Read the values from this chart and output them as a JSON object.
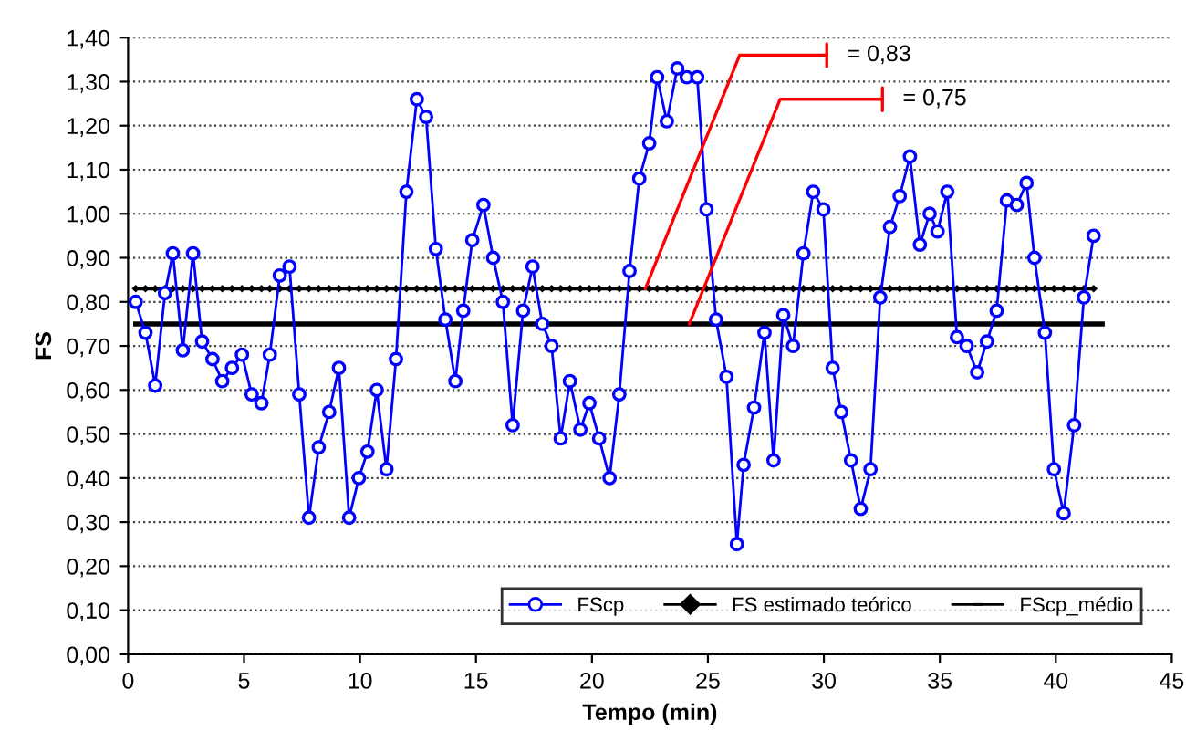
{
  "chart_data": {
    "type": "line",
    "xlabel": "Tempo (min)",
    "ylabel": "FS",
    "xlim": [
      0,
      45
    ],
    "xticks": [
      0,
      5,
      10,
      15,
      20,
      25,
      30,
      35,
      40,
      45
    ],
    "ylim": [
      0,
      1.4
    ],
    "yticks": [
      {
        "value": 0,
        "label": "0,00"
      },
      {
        "value": 0.1,
        "label": "0,10"
      },
      {
        "value": 0.2,
        "label": "0,20"
      },
      {
        "value": 0.3,
        "label": "0,30"
      },
      {
        "value": 0.4,
        "label": "0,40"
      },
      {
        "value": 0.5,
        "label": "0,50"
      },
      {
        "value": 0.6,
        "label": "0,60"
      },
      {
        "value": 0.7,
        "label": "0,70"
      },
      {
        "value": 0.8,
        "label": "0,80"
      },
      {
        "value": 0.9,
        "label": "0,90"
      },
      {
        "value": 1.0,
        "label": "1,00"
      },
      {
        "value": 1.1,
        "label": "1,10"
      },
      {
        "value": 1.2,
        "label": "1,20"
      },
      {
        "value": 1.3,
        "label": "1,30"
      },
      {
        "value": 1.4,
        "label": "1,40"
      }
    ],
    "grid": "y",
    "legend": "bottom right",
    "series": [
      {
        "name": "FScp",
        "color": "#0000ff",
        "marker": "circle",
        "x": [
          0.33,
          0.75,
          1.17,
          1.59,
          1.93,
          2.36,
          2.8,
          3.19,
          3.64,
          4.06,
          4.48,
          4.91,
          5.33,
          5.75,
          6.11,
          6.54,
          6.96,
          7.38,
          7.8,
          8.22,
          8.67,
          9.09,
          9.53,
          9.95,
          10.32,
          10.72,
          11.14,
          11.55,
          12.0,
          12.45,
          12.85,
          13.27,
          13.68,
          14.11,
          14.45,
          14.84,
          15.32,
          15.74,
          16.16,
          16.58,
          17.03,
          17.44,
          17.86,
          18.26,
          18.65,
          19.05,
          19.5,
          19.89,
          20.31,
          20.76,
          21.18,
          21.62,
          22.04,
          22.47,
          22.81,
          23.23,
          23.68,
          24.09,
          24.54,
          24.94,
          25.35,
          25.8,
          26.25,
          26.54,
          26.99,
          27.44,
          27.83,
          28.25,
          28.67,
          29.12,
          29.54,
          29.98,
          30.38,
          30.75,
          31.17,
          31.59,
          32.01,
          32.43,
          32.85,
          33.27,
          33.71,
          34.14,
          34.56,
          34.9,
          35.32,
          35.74,
          36.16,
          36.61,
          37.03,
          37.45,
          37.89,
          38.32,
          38.74,
          39.08,
          39.53,
          39.92,
          40.34,
          40.79,
          41.21,
          41.63
        ],
        "values": [
          0.8,
          0.73,
          0.61,
          0.82,
          0.91,
          0.69,
          0.91,
          0.71,
          0.67,
          0.62,
          0.65,
          0.68,
          0.59,
          0.57,
          0.68,
          0.86,
          0.88,
          0.59,
          0.31,
          0.47,
          0.55,
          0.65,
          0.31,
          0.4,
          0.46,
          0.6,
          0.42,
          0.67,
          1.05,
          1.26,
          1.22,
          0.92,
          0.76,
          0.62,
          0.78,
          0.94,
          1.02,
          0.9,
          0.8,
          0.52,
          0.78,
          0.88,
          0.75,
          0.7,
          0.49,
          0.62,
          0.51,
          0.57,
          0.49,
          0.4,
          0.59,
          0.87,
          1.08,
          1.16,
          1.31,
          1.21,
          1.33,
          1.31,
          1.31,
          1.01,
          0.76,
          0.63,
          0.25,
          0.43,
          0.56,
          0.73,
          0.44,
          0.77,
          0.7,
          0.91,
          1.05,
          1.01,
          0.65,
          0.55,
          0.44,
          0.33,
          0.42,
          0.81,
          0.97,
          1.04,
          1.13,
          0.93,
          1.0,
          0.96,
          1.05,
          0.72,
          0.7,
          0.64,
          0.71,
          0.78,
          1.03,
          1.02,
          1.07,
          0.9,
          0.73,
          0.42,
          0.32,
          0.52,
          0.81,
          0.95
        ]
      },
      {
        "name": "FS estimado teórico",
        "color": "#000000",
        "marker": "diamond",
        "x": [
          0.33,
          0.75,
          1.17,
          1.59,
          1.93,
          2.36,
          2.8,
          3.19,
          3.64,
          4.06,
          4.48,
          4.91,
          5.33,
          5.75,
          6.11,
          6.54,
          6.96,
          7.38,
          7.8,
          8.22,
          8.67,
          9.09,
          9.53,
          9.95,
          10.32,
          10.72,
          11.14,
          11.55,
          12.0,
          12.45,
          12.85,
          13.27,
          13.68,
          14.11,
          14.45,
          14.84,
          15.32,
          15.74,
          16.16,
          16.58,
          17.03,
          17.44,
          17.86,
          18.26,
          18.65,
          19.05,
          19.5,
          19.89,
          20.31,
          20.76,
          21.18,
          21.62,
          22.04,
          22.47,
          22.81,
          23.23,
          23.68,
          24.09,
          24.54,
          24.94,
          25.35,
          25.8,
          26.25,
          26.54,
          26.99,
          27.44,
          27.83,
          28.25,
          28.67,
          29.12,
          29.54,
          29.98,
          30.38,
          30.75,
          31.17,
          31.59,
          32.01,
          32.43,
          32.85,
          33.27,
          33.71,
          34.14,
          34.56,
          34.9,
          35.32,
          35.74,
          36.16,
          36.61,
          37.03,
          37.45,
          37.89,
          38.32,
          38.74,
          39.08,
          39.53,
          39.92,
          40.34,
          40.79,
          41.21,
          41.63
        ],
        "values": [
          0.83,
          0.83,
          0.83,
          0.83,
          0.83,
          0.83,
          0.83,
          0.83,
          0.83,
          0.83,
          0.83,
          0.83,
          0.83,
          0.83,
          0.83,
          0.83,
          0.83,
          0.83,
          0.83,
          0.83,
          0.83,
          0.83,
          0.83,
          0.83,
          0.83,
          0.83,
          0.83,
          0.83,
          0.83,
          0.83,
          0.83,
          0.83,
          0.83,
          0.83,
          0.83,
          0.83,
          0.83,
          0.83,
          0.83,
          0.83,
          0.83,
          0.83,
          0.83,
          0.83,
          0.83,
          0.83,
          0.83,
          0.83,
          0.83,
          0.83,
          0.83,
          0.83,
          0.83,
          0.83,
          0.83,
          0.83,
          0.83,
          0.83,
          0.83,
          0.83,
          0.83,
          0.83,
          0.83,
          0.83,
          0.83,
          0.83,
          0.83,
          0.83,
          0.83,
          0.83,
          0.83,
          0.83,
          0.83,
          0.83,
          0.83,
          0.83,
          0.83,
          0.83,
          0.83,
          0.83,
          0.83,
          0.83,
          0.83,
          0.83,
          0.83,
          0.83,
          0.83,
          0.83,
          0.83,
          0.83,
          0.83,
          0.83,
          0.83,
          0.83,
          0.83,
          0.83,
          0.83,
          0.83,
          0.83,
          0.83
        ]
      },
      {
        "name": "FScp_médio",
        "color": "#000000",
        "marker": "none",
        "x": [
          0.33,
          42.0
        ],
        "values": [
          0.75,
          0.75
        ]
      }
    ],
    "annotations": [
      {
        "text": "= 0,83",
        "x": 22.3,
        "y": 0.83
      },
      {
        "text": "= 0,75",
        "x": 24.2,
        "y": 0.75
      }
    ]
  }
}
